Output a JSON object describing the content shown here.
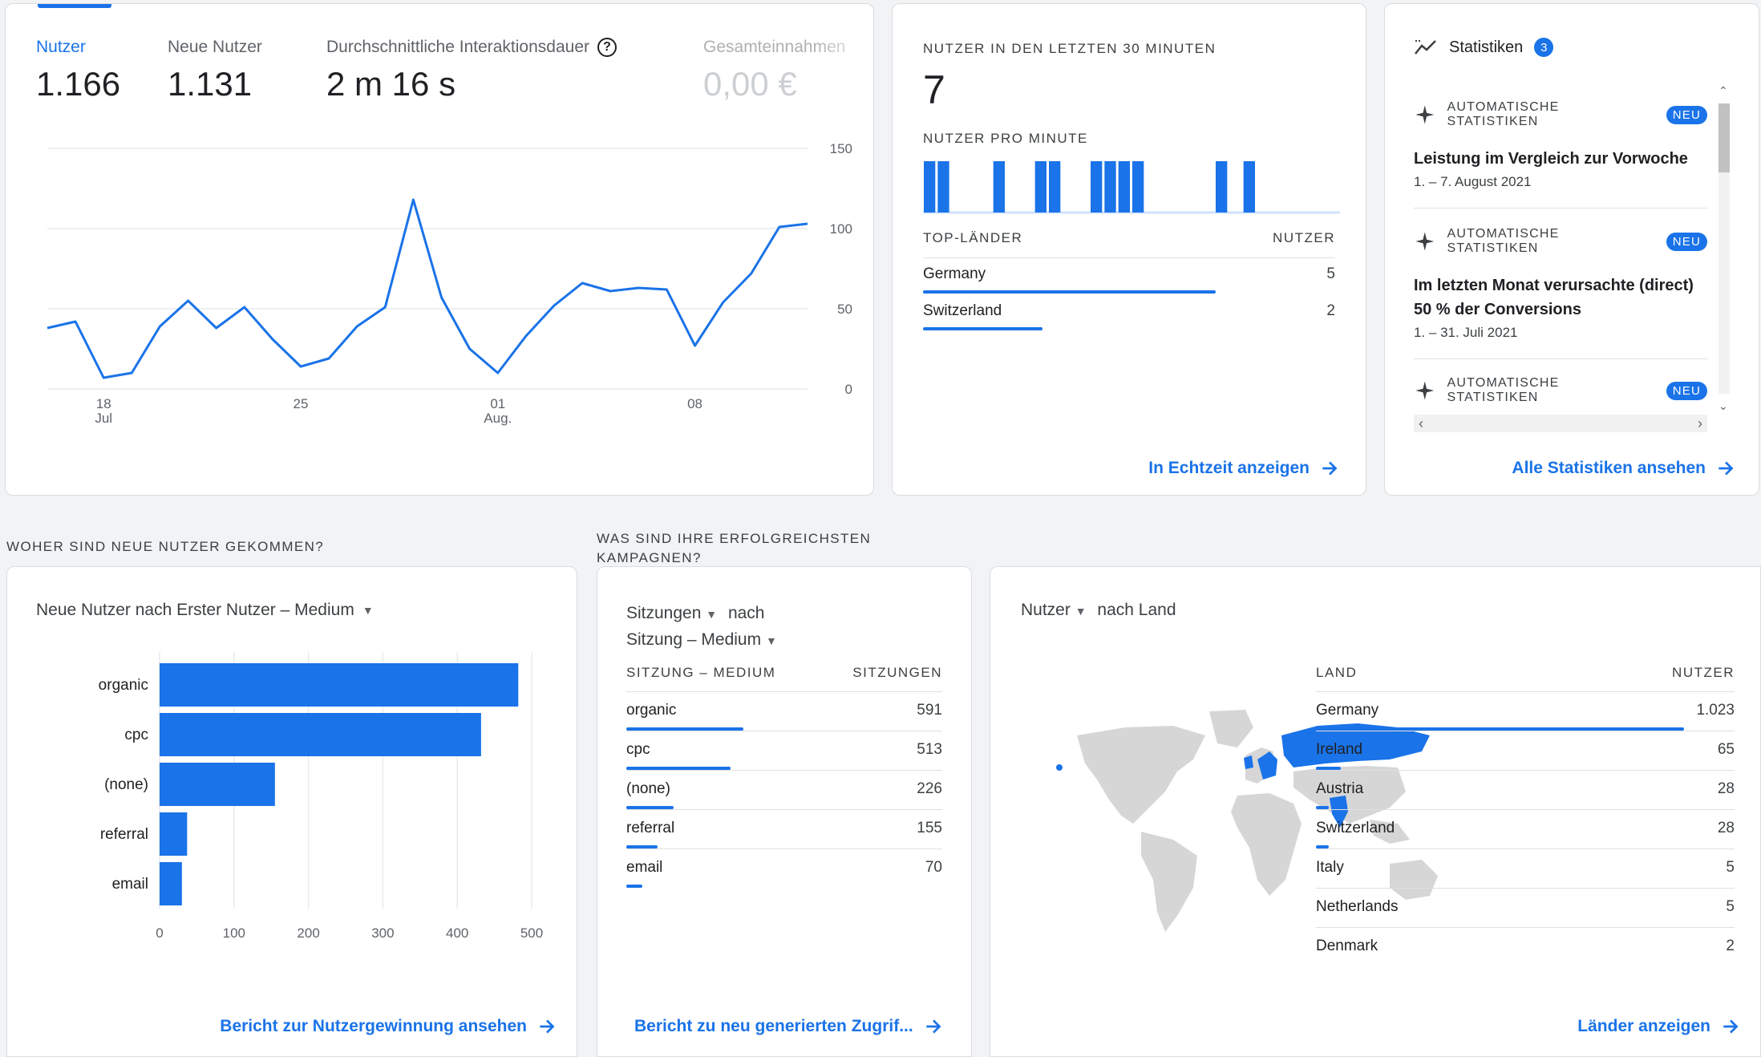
{
  "overview": {
    "metrics": [
      {
        "label": "Nutzer",
        "value": "1.166"
      },
      {
        "label": "Neue Nutzer",
        "value": "1.131"
      },
      {
        "label": "Durchschnittliche Interaktionsdauer",
        "value": "2 m 16 s"
      },
      {
        "label": "Gesamteinnahmen",
        "value": "0,00 €"
      }
    ],
    "y_ticks": [
      "150",
      "100",
      "50",
      "0"
    ],
    "x_ticks": [
      {
        "day": "18",
        "month": "Jul"
      },
      {
        "day": "25",
        "month": ""
      },
      {
        "day": "01",
        "month": "Aug."
      },
      {
        "day": "08",
        "month": ""
      }
    ]
  },
  "chart_data": [
    {
      "type": "line",
      "series": [
        {
          "values": [
            38,
            42,
            7,
            10,
            39,
            55,
            38,
            51,
            31,
            14,
            19,
            39,
            51,
            118,
            57,
            25,
            10,
            33,
            52,
            66,
            61,
            63,
            62,
            27,
            54,
            72,
            101,
            103
          ]
        }
      ],
      "x": [
        "16. Juli",
        "17. Juli",
        "18. Juli",
        "19. Juli",
        "20. Juli",
        "21. Juli",
        "22. Juli",
        "23. Juli",
        "24. Juli",
        "25. Juli",
        "26. Juli",
        "27. Juli",
        "28. Juli",
        "29. Juli",
        "30. Juli",
        "31. Juli",
        "01. Aug.",
        "02. Aug.",
        "03. Aug.",
        "04. Aug.",
        "05. Aug.",
        "06. Aug.",
        "07. Aug.",
        "08. Aug.",
        "09. Aug.",
        "10. Aug.",
        "11. Aug.",
        "12. Aug."
      ],
      "ylim": [
        0,
        150
      ],
      "grid": true
    },
    {
      "type": "bar",
      "orientation": "horizontal",
      "title": "Neue Nutzer nach Erster Nutzer – Medium",
      "categories": [
        "organic",
        "cpc",
        "(none)",
        "referral",
        "email"
      ],
      "values": [
        482,
        432,
        155,
        37,
        30
      ],
      "xlim": [
        0,
        500
      ],
      "x_ticks": [
        "0",
        "100",
        "200",
        "300",
        "400",
        "500"
      ]
    },
    {
      "type": "bar",
      "title": "Nutzer pro Minute",
      "values": [
        1,
        1,
        0,
        0,
        0,
        1,
        0,
        0,
        1,
        1,
        0,
        0,
        1,
        1,
        1,
        1,
        0,
        0,
        0,
        0,
        0,
        1,
        0,
        1,
        0,
        0,
        0,
        0,
        0,
        0
      ]
    }
  ],
  "realtime": {
    "title": "Nutzer in den letzten 30 Minuten",
    "value": "7",
    "subtitle": "Nutzer pro Minute",
    "col_country": "Top-Länder",
    "col_users": "Nutzer",
    "rows": [
      {
        "country": "Germany",
        "users": "5",
        "share": 0.71
      },
      {
        "country": "Switzerland",
        "users": "2",
        "share": 0.29
      }
    ],
    "link": "In Echtzeit anzeigen"
  },
  "insights": {
    "title": "Statistiken",
    "count": "3",
    "badge": "Neu",
    "items": [
      {
        "type": "Automatische Statistiken",
        "text": "Leistung im Vergleich zur Vorwoche",
        "date": "1. – 7. August 2021"
      },
      {
        "type": "Automatische Statistiken",
        "text": "Im letzten Monat verursachte (direct) 50 % der Conversions",
        "date": "1. – 31. Juli 2021"
      },
      {
        "type": "Automatische Statistiken",
        "text": "",
        "date": ""
      }
    ],
    "link": "Alle Statistiken ansehen"
  },
  "acquisition": {
    "question": "Woher sind neue Nutzer gekommen?",
    "dropdown_metric": "Neue Nutzer nach Erster Nutzer – Medium",
    "link": "Bericht zur Nutzergewinnung ansehen"
  },
  "campaigns": {
    "question": "Was sind Ihre erfolgreichsten Kampagnen?",
    "dropdown_metric": "Sitzungen",
    "by": "nach",
    "dropdown_dimension": "Sitzung – Medium",
    "col_dim": "Sitzung – Medium",
    "col_metric": "Sitzungen",
    "rows": [
      {
        "name": "organic",
        "value": "591",
        "share": 0.44
      },
      {
        "name": "cpc",
        "value": "513",
        "share": 0.34
      },
      {
        "name": "(none)",
        "value": "226",
        "share": 0.15
      },
      {
        "name": "referral",
        "value": "155",
        "share": 0.1
      },
      {
        "name": "email",
        "value": "70",
        "share": 0.05
      }
    ],
    "link": "Bericht zu neu generierten Zugrif..."
  },
  "countries": {
    "dropdown_metric": "Nutzer",
    "by": "nach Land",
    "col_country": "Land",
    "col_users": "Nutzer",
    "rows": [
      {
        "name": "Germany",
        "value": "1.023",
        "share": 0.95
      },
      {
        "name": "Ireland",
        "value": "65",
        "share": 0.06
      },
      {
        "name": "Austria",
        "value": "28",
        "share": 0.03
      },
      {
        "name": "Switzerland",
        "value": "28",
        "share": 0.03
      },
      {
        "name": "Italy",
        "value": "5",
        "share": 0.01
      },
      {
        "name": "Netherlands",
        "value": "5",
        "share": 0.01
      },
      {
        "name": "Denmark",
        "value": "2",
        "share": 0.005
      }
    ],
    "link": "Länder anzeigen"
  },
  "colors": {
    "accent": "#1a73e8",
    "map_land": "#d6d6d6",
    "map_highlight": "#1a73e8"
  }
}
